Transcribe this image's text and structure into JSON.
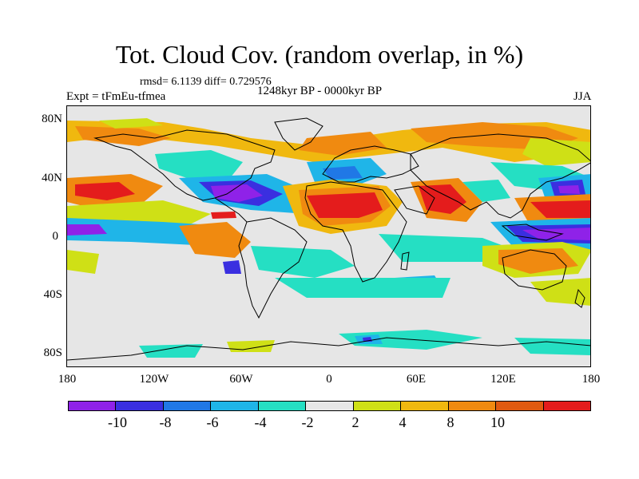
{
  "title": "Tot. Cloud Cov. (random overlap, in %)",
  "stats": "rmsd= 6.1139 diff= 0.729576",
  "expt": "Expt = tFmEu-tfmea",
  "period": "1248kyr BP - 0000kyr BP",
  "season": "JJA",
  "y_axis": {
    "labels": [
      "80N",
      "40N",
      "0",
      "40S",
      "80S"
    ]
  },
  "x_axis": {
    "labels": [
      "180",
      "120W",
      "60W",
      "0",
      "60E",
      "120E",
      "180"
    ]
  },
  "colorbar": {
    "labels": [
      "-10",
      "-8",
      "-6",
      "-4",
      "-2",
      "2",
      "4",
      "8",
      "10"
    ],
    "colors": [
      "#8f22e8",
      "#3a2fe0",
      "#2078e6",
      "#1fb5e8",
      "#25dfc3",
      "#e6e6e6",
      "#cfe016",
      "#f0b80f",
      "#f08a10",
      "#e05a10",
      "#e41c1c"
    ]
  },
  "map": {
    "background_color": "#e6e6e6",
    "coastline_color": "#000000"
  }
}
